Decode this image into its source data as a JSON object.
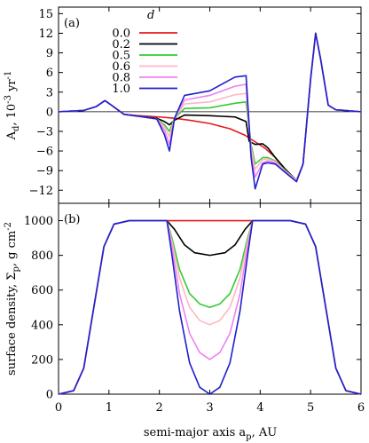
{
  "chart_data": {
    "type": "line",
    "xlabel": "semi-major axis a_p, AU",
    "xlim": [
      0,
      6
    ],
    "xticks": [
      0,
      1,
      2,
      3,
      4,
      5,
      6
    ],
    "legend_title": "d",
    "legend_placement": "top-left",
    "panels": [
      {
        "tag": "(a)",
        "ylabel": "A_d, 10^-3 yr^-1",
        "ylim": [
          -14,
          16
        ],
        "yticks": [
          -12,
          -9,
          -6,
          -3,
          0,
          3,
          6,
          9,
          12,
          15
        ],
        "zero_line": true,
        "series": [
          {
            "name": "0.0",
            "color": "#e41a1c",
            "x": [
              0,
              0.5,
              0.75,
              0.92,
              1.05,
              1.3,
              1.6,
              2.0,
              2.3,
              2.6,
              3.0,
              3.4,
              3.7,
              3.9,
              4.1,
              4.3,
              4.5,
              4.72,
              4.85,
              5.0,
              5.1,
              5.2,
              5.35,
              5.5,
              6.0
            ],
            "y": [
              0,
              0.2,
              0.8,
              1.7,
              1.0,
              -0.4,
              -0.6,
              -0.8,
              -1.0,
              -1.3,
              -1.8,
              -2.6,
              -3.6,
              -4.6,
              -5.6,
              -7.0,
              -9.0,
              -10.5,
              -8.0,
              5.0,
              12.0,
              8.0,
              1.0,
              0.3,
              0
            ]
          },
          {
            "name": "0.2",
            "color": "#000000",
            "x": [
              0,
              0.5,
              0.75,
              0.92,
              1.05,
              1.3,
              1.6,
              1.95,
              2.1,
              2.2,
              2.3,
              2.5,
              3.0,
              3.5,
              3.72,
              3.78,
              3.9,
              4.05,
              4.15,
              4.3,
              4.5,
              4.72,
              4.85,
              5.0,
              5.1,
              5.2,
              5.35,
              5.5,
              6.0
            ],
            "y": [
              0,
              0.2,
              0.8,
              1.7,
              1.0,
              -0.4,
              -0.7,
              -1.0,
              -1.5,
              -2.0,
              -1.3,
              -0.5,
              -0.6,
              -0.8,
              -1.5,
              -4.5,
              -5.0,
              -4.9,
              -5.5,
              -7.0,
              -8.8,
              -10.5,
              -8.0,
              5.0,
              12.0,
              8.0,
              1.0,
              0.3,
              0
            ]
          },
          {
            "name": "0.5",
            "color": "#33cc33",
            "x": [
              0,
              0.5,
              0.75,
              0.92,
              1.05,
              1.3,
              1.6,
              1.95,
              2.1,
              2.2,
              2.3,
              2.5,
              3.0,
              3.5,
              3.72,
              3.82,
              3.9,
              4.05,
              4.15,
              4.3,
              4.5,
              4.72,
              4.85,
              5.0,
              5.1,
              5.2,
              5.35,
              5.5,
              6.0
            ],
            "y": [
              0,
              0.2,
              0.8,
              1.7,
              1.0,
              -0.4,
              -0.7,
              -1.1,
              -2.0,
              -3.0,
              -1.0,
              0.5,
              0.6,
              1.3,
              1.5,
              -5.0,
              -8.0,
              -7.0,
              -7.0,
              -7.5,
              -9.0,
              -10.5,
              -8.0,
              5.0,
              12.0,
              8.0,
              1.0,
              0.3,
              0
            ]
          },
          {
            "name": "0.6",
            "color": "#ffb6c1",
            "x": [
              0,
              0.5,
              0.75,
              0.92,
              1.05,
              1.3,
              1.6,
              1.95,
              2.1,
              2.2,
              2.3,
              2.5,
              3.0,
              3.5,
              3.72,
              3.82,
              3.9,
              4.05,
              4.15,
              4.3,
              4.5,
              4.72,
              4.85,
              5.0,
              5.1,
              5.2,
              5.35,
              5.5,
              6.0
            ],
            "y": [
              0,
              0.2,
              0.8,
              1.7,
              1.0,
              -0.4,
              -0.7,
              -1.1,
              -2.3,
              -3.8,
              -1.0,
              1.2,
              1.5,
              2.6,
              2.8,
              -5.5,
              -8.8,
              -7.3,
              -7.2,
              -7.6,
              -9.1,
              -10.5,
              -8.0,
              5.0,
              12.0,
              8.0,
              1.0,
              0.3,
              0
            ]
          },
          {
            "name": "0.8",
            "color": "#ee82ee",
            "x": [
              0,
              0.5,
              0.75,
              0.92,
              1.05,
              1.3,
              1.6,
              1.95,
              2.1,
              2.2,
              2.3,
              2.5,
              3.0,
              3.5,
              3.72,
              3.82,
              3.9,
              4.05,
              4.15,
              4.3,
              4.5,
              4.72,
              4.85,
              5.0,
              5.1,
              5.2,
              5.35,
              5.5,
              6.0
            ],
            "y": [
              0,
              0.2,
              0.8,
              1.7,
              1.0,
              -0.4,
              -0.7,
              -1.1,
              -2.8,
              -5.0,
              -1.0,
              1.8,
              2.5,
              3.9,
              4.2,
              -6.5,
              -10.0,
              -7.8,
              -7.5,
              -7.8,
              -9.2,
              -10.6,
              -8.0,
              5.0,
              12.0,
              8.0,
              1.0,
              0.3,
              0
            ]
          },
          {
            "name": "1.0",
            "color": "#1f1fcc",
            "x": [
              0,
              0.5,
              0.75,
              0.92,
              1.05,
              1.3,
              1.6,
              1.95,
              2.1,
              2.2,
              2.3,
              2.5,
              3.0,
              3.5,
              3.72,
              3.82,
              3.9,
              4.05,
              4.15,
              4.3,
              4.5,
              4.72,
              4.85,
              5.0,
              5.1,
              5.2,
              5.35,
              5.5,
              6.0
            ],
            "y": [
              0,
              0.2,
              0.8,
              1.7,
              1.0,
              -0.4,
              -0.7,
              -1.1,
              -3.5,
              -6.0,
              -1.0,
              2.5,
              3.2,
              5.3,
              5.5,
              -7.0,
              -11.8,
              -8.0,
              -7.8,
              -8.0,
              -9.3,
              -10.7,
              -8.0,
              5.0,
              12.0,
              8.0,
              1.0,
              0.3,
              0
            ]
          }
        ]
      },
      {
        "tag": "(b)",
        "ylabel": "surface density, Σ_p, g cm^-2",
        "ylim": [
          0,
          1100
        ],
        "yticks": [
          0,
          200,
          400,
          600,
          800,
          1000
        ],
        "zero_line": false,
        "series": [
          {
            "name": "0.0",
            "color": "#e41a1c",
            "x": [
              0,
              0.3,
              0.5,
              0.7,
              0.9,
              1.1,
              1.4,
              1.7,
              2.0,
              2.15,
              3.85,
              4.0,
              4.3,
              4.6,
              4.9,
              5.1,
              5.3,
              5.5,
              5.7,
              6.0
            ],
            "y": [
              0,
              20,
              150,
              500,
              850,
              980,
              1000,
              1000,
              1000,
              1000,
              1000,
              1000,
              1000,
              1000,
              980,
              850,
              500,
              150,
              20,
              0
            ]
          },
          {
            "name": "0.2",
            "color": "#000000",
            "x": [
              0,
              0.3,
              0.5,
              0.7,
              0.9,
              1.1,
              1.4,
              1.7,
              2.0,
              2.15,
              2.3,
              2.5,
              2.7,
              3.0,
              3.3,
              3.5,
              3.7,
              3.85,
              4.0,
              4.3,
              4.6,
              4.9,
              5.1,
              5.3,
              5.5,
              5.7,
              6.0
            ],
            "y": [
              0,
              20,
              150,
              500,
              850,
              980,
              1000,
              1000,
              1000,
              1000,
              950,
              860,
              815,
              800,
              815,
              860,
              950,
              1000,
              1000,
              1000,
              1000,
              980,
              850,
              500,
              150,
              20,
              0
            ]
          },
          {
            "name": "0.5",
            "color": "#33cc33",
            "x": [
              0,
              0.3,
              0.5,
              0.7,
              0.9,
              1.1,
              1.4,
              1.7,
              2.0,
              2.15,
              2.25,
              2.4,
              2.6,
              2.8,
              3.0,
              3.2,
              3.4,
              3.6,
              3.75,
              3.85,
              4.0,
              4.3,
              4.6,
              4.9,
              5.1,
              5.3,
              5.5,
              5.7,
              6.0
            ],
            "y": [
              0,
              20,
              150,
              500,
              850,
              980,
              1000,
              1000,
              1000,
              1000,
              900,
              720,
              580,
              520,
              500,
              520,
              580,
              720,
              900,
              1000,
              1000,
              1000,
              1000,
              980,
              850,
              500,
              150,
              20,
              0
            ]
          },
          {
            "name": "0.6",
            "color": "#ffb6c1",
            "x": [
              0,
              0.3,
              0.5,
              0.7,
              0.9,
              1.1,
              1.4,
              1.7,
              2.0,
              2.15,
              2.25,
              2.4,
              2.6,
              2.8,
              3.0,
              3.2,
              3.4,
              3.6,
              3.75,
              3.85,
              4.0,
              4.3,
              4.6,
              4.9,
              5.1,
              5.3,
              5.5,
              5.7,
              6.0
            ],
            "y": [
              0,
              20,
              150,
              500,
              850,
              980,
              1000,
              1000,
              1000,
              1000,
              880,
              670,
              500,
              425,
              400,
              425,
              500,
              670,
              880,
              1000,
              1000,
              1000,
              1000,
              980,
              850,
              500,
              150,
              20,
              0
            ]
          },
          {
            "name": "0.8",
            "color": "#ee82ee",
            "x": [
              0,
              0.3,
              0.5,
              0.7,
              0.9,
              1.1,
              1.4,
              1.7,
              2.0,
              2.15,
              2.25,
              2.4,
              2.6,
              2.8,
              3.0,
              3.2,
              3.4,
              3.6,
              3.75,
              3.85,
              4.0,
              4.3,
              4.6,
              4.9,
              5.1,
              5.3,
              5.5,
              5.7,
              6.0
            ],
            "y": [
              0,
              20,
              150,
              500,
              850,
              980,
              1000,
              1000,
              1000,
              1000,
              850,
              580,
              350,
              240,
              200,
              240,
              350,
              580,
              850,
              1000,
              1000,
              1000,
              1000,
              980,
              850,
              500,
              150,
              20,
              0
            ]
          },
          {
            "name": "1.0",
            "color": "#1f1fcc",
            "x": [
              0,
              0.3,
              0.5,
              0.7,
              0.9,
              1.1,
              1.4,
              1.7,
              2.0,
              2.15,
              2.25,
              2.4,
              2.6,
              2.8,
              3.0,
              3.2,
              3.4,
              3.6,
              3.75,
              3.85,
              4.0,
              4.3,
              4.6,
              4.9,
              5.1,
              5.3,
              5.5,
              5.7,
              6.0
            ],
            "y": [
              0,
              20,
              150,
              500,
              850,
              980,
              1000,
              1000,
              1000,
              1000,
              800,
              480,
              180,
              40,
              0,
              40,
              180,
              480,
              800,
              1000,
              1000,
              1000,
              1000,
              980,
              850,
              500,
              150,
              20,
              0
            ]
          }
        ]
      }
    ]
  }
}
